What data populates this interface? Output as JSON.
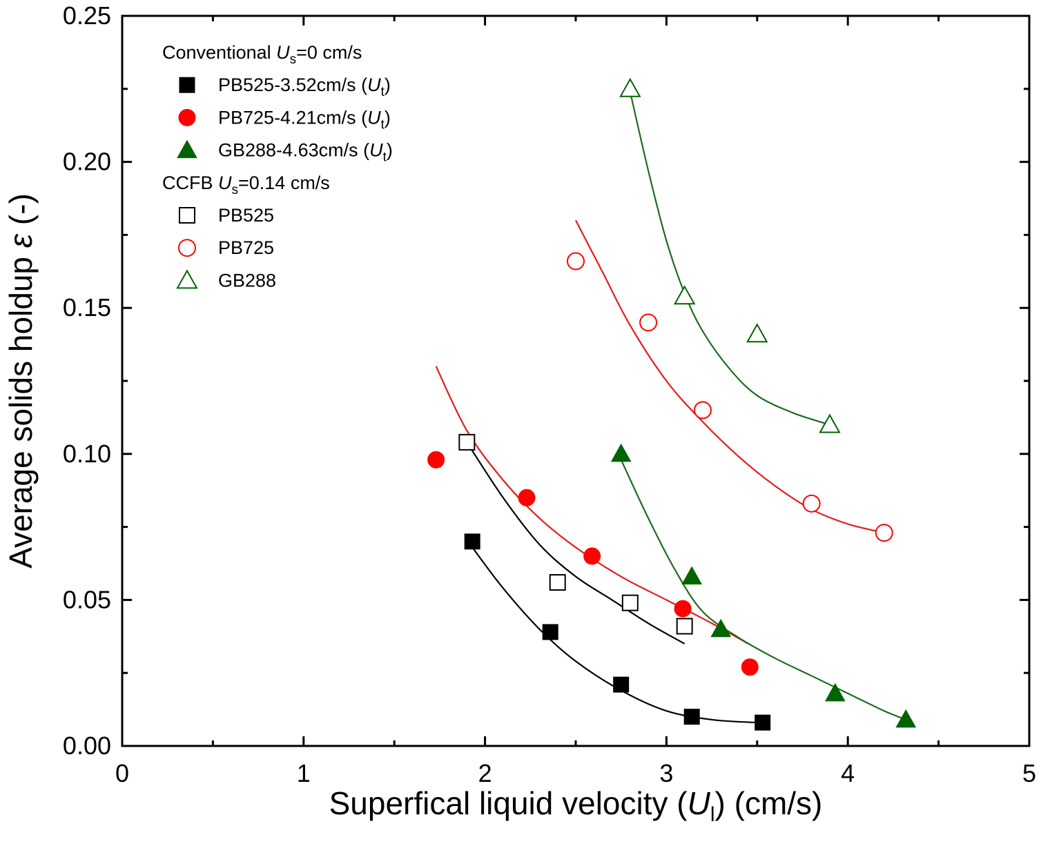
{
  "chart_data": {
    "type": "scatter",
    "title": "",
    "xlabel": {
      "prefix": "Superfical liquid velocity (",
      "symbol": "U",
      "sub": "l",
      "suffix": ") (cm/s)"
    },
    "ylabel": {
      "prefix": "Average solids holdup ",
      "symbol": "ε",
      "suffix": " (-)"
    },
    "xlim": [
      0,
      5
    ],
    "ylim": [
      0,
      0.25
    ],
    "xticks": [
      "0",
      "1",
      "2",
      "3",
      "4",
      "5"
    ],
    "yticks": [
      "0.00",
      "0.05",
      "0.10",
      "0.15",
      "0.20",
      "0.25"
    ],
    "grid": false,
    "legend_position": "top-left",
    "legend_groups": [
      {
        "prefix": "Conventional ",
        "symbol": "U",
        "sub": "s",
        "suffix": "=0 cm/s"
      },
      {
        "prefix": "CCFB ",
        "symbol": "U",
        "sub": "s",
        "suffix": "=0.14 cm/s"
      }
    ],
    "colors": {
      "black": "#000000",
      "red": "#ff0000",
      "green": "#006400",
      "red_line": "#e8191b",
      "green_line": "#1e6b1e"
    },
    "series": [
      {
        "group": 0,
        "label": "PB525-3.52cm/s (",
        "label_symbol": "U",
        "label_sub": "t",
        "label_suffix": ")",
        "marker": "square",
        "filled": true,
        "color": "black",
        "x": [
          1.93,
          2.36,
          2.75,
          3.14,
          3.53
        ],
        "y": [
          0.07,
          0.039,
          0.021,
          0.01,
          0.008
        ],
        "fit_x": [
          1.93,
          2.1,
          2.3,
          2.5,
          2.75,
          3.0,
          3.25,
          3.5
        ],
        "fit_y": [
          0.068,
          0.054,
          0.04,
          0.029,
          0.019,
          0.012,
          0.009,
          0.008
        ]
      },
      {
        "group": 0,
        "label": "PB725-4.21cm/s (",
        "label_symbol": "U",
        "label_sub": "t",
        "label_suffix": ")",
        "marker": "circle",
        "filled": true,
        "color": "red",
        "x": [
          1.73,
          2.23,
          2.59,
          3.09,
          3.46
        ],
        "y": [
          0.098,
          0.085,
          0.065,
          0.047,
          0.027
        ],
        "fit_x": [
          1.73,
          1.9,
          2.1,
          2.3,
          2.5,
          2.75,
          3.0,
          3.25,
          3.45
        ],
        "fit_y": [
          0.13,
          0.108,
          0.091,
          0.078,
          0.068,
          0.058,
          0.05,
          0.042,
          0.035
        ],
        "line_color": "red_line"
      },
      {
        "group": 0,
        "label": "GB288-4.63cm/s (",
        "label_symbol": "U",
        "label_sub": "t",
        "label_suffix": ")",
        "marker": "triangle",
        "filled": true,
        "color": "green",
        "x": [
          2.75,
          3.14,
          3.3,
          3.93,
          4.32
        ],
        "y": [
          0.1,
          0.058,
          0.04,
          0.018,
          0.009
        ],
        "fit_x": [
          2.75,
          2.9,
          3.05,
          3.2,
          3.4,
          3.6,
          3.8,
          4.0,
          4.2,
          4.32
        ],
        "fit_y": [
          0.098,
          0.078,
          0.06,
          0.046,
          0.037,
          0.03,
          0.024,
          0.018,
          0.012,
          0.009
        ],
        "line_color": "green_line"
      },
      {
        "group": 1,
        "label": "PB525",
        "marker": "square",
        "filled": false,
        "color": "black",
        "x": [
          1.9,
          2.4,
          2.8,
          3.1
        ],
        "y": [
          0.104,
          0.056,
          0.049,
          0.041
        ],
        "fit_x": [
          1.9,
          2.1,
          2.3,
          2.5,
          2.7,
          2.9,
          3.1
        ],
        "fit_y": [
          0.104,
          0.085,
          0.069,
          0.058,
          0.05,
          0.042,
          0.035
        ]
      },
      {
        "group": 1,
        "label": "PB725",
        "marker": "circle",
        "filled": false,
        "color": "red",
        "x": [
          2.5,
          2.9,
          3.2,
          3.8,
          4.2
        ],
        "y": [
          0.166,
          0.145,
          0.115,
          0.083,
          0.073
        ],
        "fit_x": [
          2.5,
          2.65,
          2.8,
          3.0,
          3.2,
          3.4,
          3.6,
          3.8,
          4.0,
          4.2
        ],
        "fit_y": [
          0.18,
          0.162,
          0.144,
          0.125,
          0.111,
          0.099,
          0.089,
          0.081,
          0.076,
          0.073
        ],
        "line_color": "red_line"
      },
      {
        "group": 1,
        "label": "GB288",
        "marker": "triangle",
        "filled": false,
        "color": "green",
        "x": [
          2.8,
          3.1,
          3.5,
          3.9
        ],
        "y": [
          0.225,
          0.154,
          0.141,
          0.11
        ],
        "fit_x": [
          2.8,
          2.9,
          3.0,
          3.1,
          3.2,
          3.35,
          3.5,
          3.7,
          3.9
        ],
        "fit_y": [
          0.224,
          0.197,
          0.173,
          0.155,
          0.142,
          0.129,
          0.12,
          0.114,
          0.11
        ],
        "line_color": "green_line"
      }
    ]
  }
}
